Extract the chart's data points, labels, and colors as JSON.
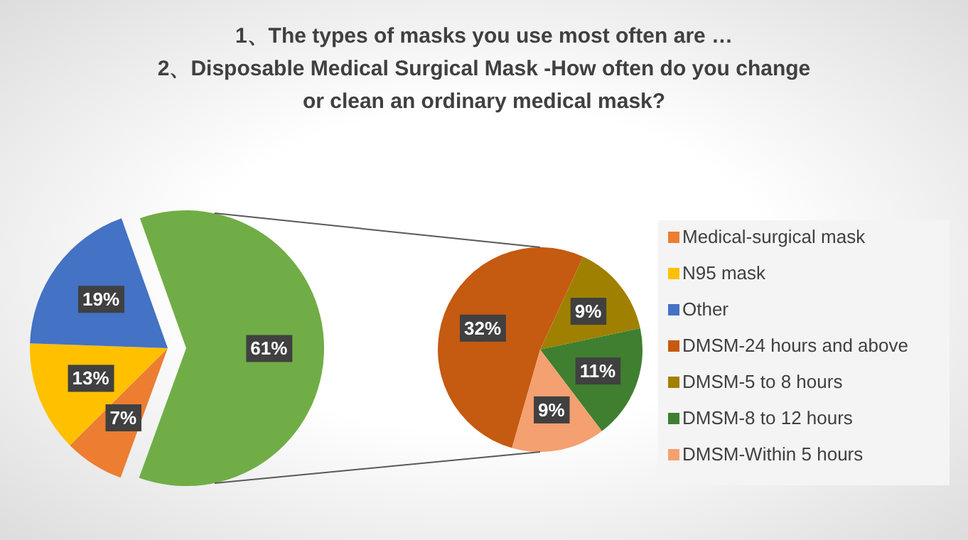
{
  "chart_data": [
    {
      "type": "pie",
      "title": "1、The types of masks you use most often are …\n2、Disposable Medical Surgical Mask -How often do you change\nor clean an ordinary medical mask?",
      "categories": [
        "Medical-surgical mask",
        "N95 mask",
        "Other",
        null
      ],
      "values": [
        7,
        13,
        19,
        61
      ],
      "colors": [
        "#ed7d31",
        "#ffc000",
        "#4472c4",
        "#70ad47"
      ],
      "value_labels": [
        "7%",
        "13%",
        "19%",
        "61%"
      ],
      "legend": "right"
    },
    {
      "type": "pie",
      "categories": [
        "DMSM-24 hours and above",
        "DMSM-5 to 8 hours",
        "DMSM-8 to 12 hours",
        "DMSM-Within 5 hours"
      ],
      "values": [
        32,
        9,
        11,
        9
      ],
      "colors": [
        "#c55a11",
        "#a08000",
        "#3f7f2f",
        "#f4a070"
      ],
      "value_labels": [
        "32%",
        "9%",
        "11%",
        "9%"
      ],
      "legend": "right"
    }
  ]
}
